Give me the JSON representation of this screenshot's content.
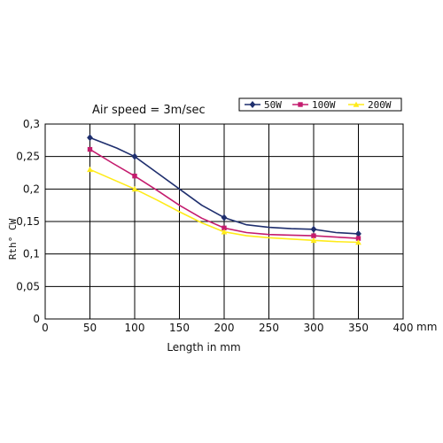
{
  "chart_data": {
    "type": "line",
    "annotation": "Air speed = 3m/sec",
    "xlabel": "Length in mm",
    "x_unit": "mm",
    "ylabel": "Rth° CW",
    "xlim": [
      0,
      400
    ],
    "ylim": [
      0,
      0.3
    ],
    "x_ticks": [
      "0",
      "50",
      "100",
      "150",
      "200",
      "250",
      "300",
      "350",
      "400"
    ],
    "y_ticks": [
      "0",
      "0,05",
      "0,1",
      "0,15",
      "0,2",
      "0,25",
      "0,3"
    ],
    "grid": true,
    "legend_position": "top-right",
    "series": [
      {
        "name": "50W",
        "color": "#1f2f6e",
        "marker": "diamond",
        "x": [
          50,
          100,
          200,
          300,
          350
        ],
        "y": [
          0.279,
          0.25,
          0.156,
          0.138,
          0.131
        ],
        "curve_x": [
          50,
          80,
          100,
          125,
          150,
          175,
          200,
          225,
          250,
          275,
          300,
          325,
          350
        ],
        "curve_y": [
          0.279,
          0.263,
          0.25,
          0.225,
          0.2,
          0.175,
          0.156,
          0.145,
          0.141,
          0.139,
          0.138,
          0.133,
          0.131
        ]
      },
      {
        "name": "100W",
        "color": "#c41c6e",
        "marker": "square",
        "x": [
          50,
          100,
          200,
          300,
          350
        ],
        "y": [
          0.261,
          0.22,
          0.14,
          0.128,
          0.124
        ],
        "curve_x": [
          50,
          75,
          100,
          125,
          150,
          175,
          200,
          225,
          250,
          275,
          300,
          325,
          350
        ],
        "curve_y": [
          0.261,
          0.24,
          0.22,
          0.198,
          0.175,
          0.155,
          0.14,
          0.133,
          0.13,
          0.129,
          0.128,
          0.126,
          0.124
        ]
      },
      {
        "name": "200W",
        "color": "#ffeb1a",
        "marker": "triangle",
        "x": [
          50,
          100,
          200,
          300,
          350
        ],
        "y": [
          0.23,
          0.2,
          0.134,
          0.121,
          0.118
        ],
        "curve_x": [
          50,
          75,
          100,
          125,
          150,
          175,
          200,
          225,
          250,
          275,
          300,
          325,
          350
        ],
        "curve_y": [
          0.23,
          0.215,
          0.2,
          0.183,
          0.165,
          0.148,
          0.134,
          0.128,
          0.125,
          0.123,
          0.121,
          0.119,
          0.118
        ]
      }
    ]
  }
}
